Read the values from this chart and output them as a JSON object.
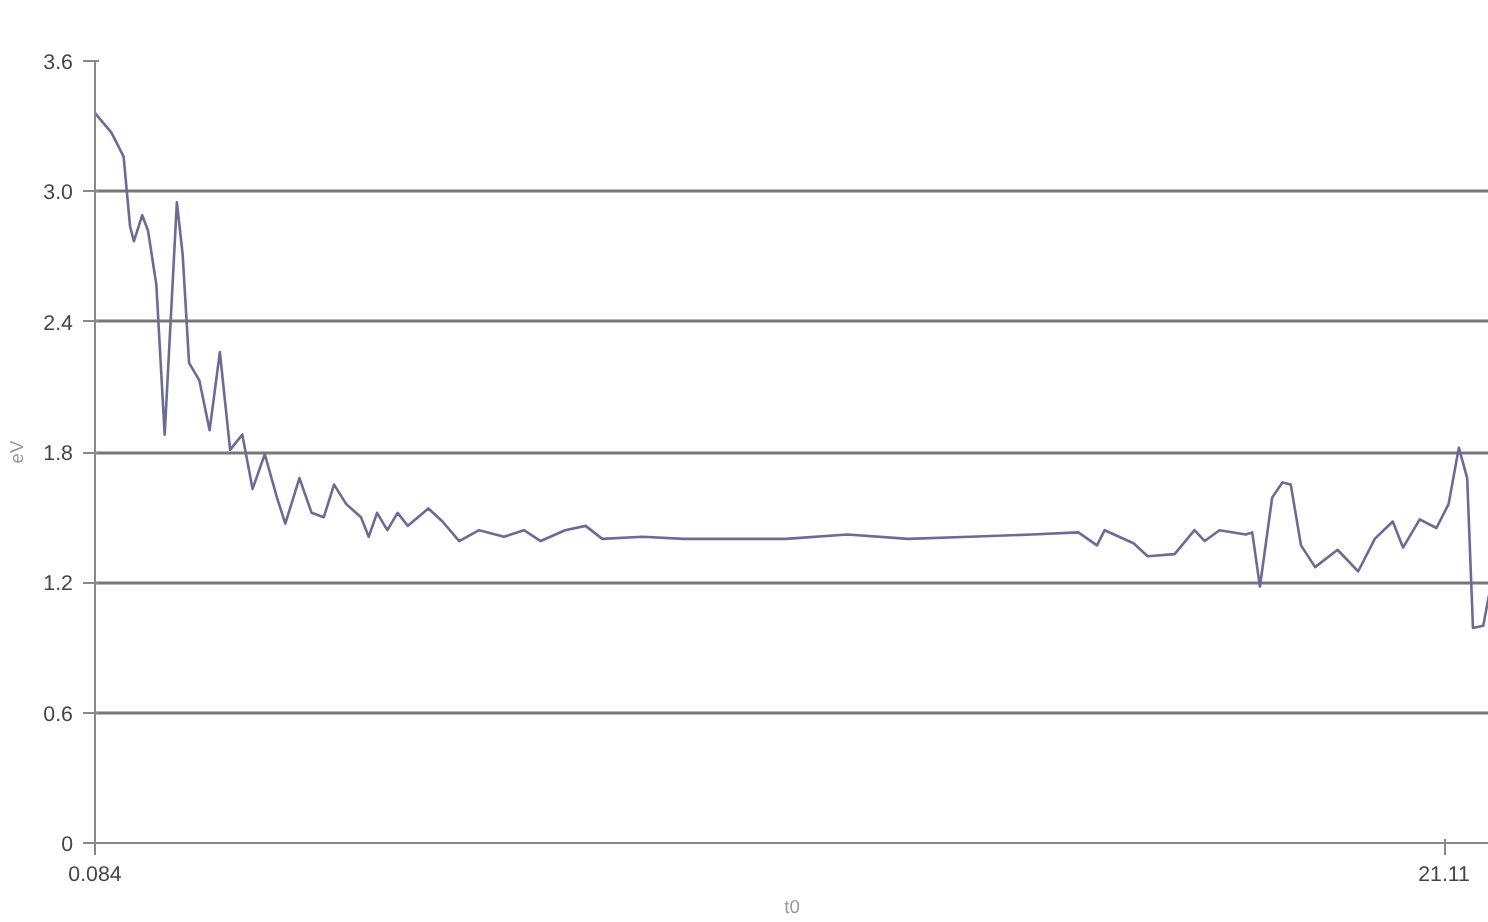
{
  "chart_data": {
    "type": "line",
    "xlabel": "t0",
    "ylabel": "eV",
    "x": [
      0.084,
      0.34,
      0.53,
      0.63,
      0.69,
      0.82,
      0.91,
      1.04,
      1.17,
      1.36,
      1.45,
      1.55,
      1.71,
      1.87,
      2.03,
      2.19,
      2.38,
      2.54,
      2.73,
      2.92,
      3.05,
      3.27,
      3.46,
      3.65,
      3.81,
      4.0,
      4.23,
      4.35,
      4.48,
      4.64,
      4.8,
      4.96,
      5.28,
      5.5,
      5.76,
      6.07,
      6.46,
      6.77,
      7.03,
      7.41,
      7.73,
      7.99,
      8.62,
      9.26,
      9.9,
      10.85,
      11.81,
      12.76,
      13.72,
      14.68,
      15.41,
      15.7,
      15.82,
      16.27,
      16.49,
      16.91,
      17.22,
      17.38,
      17.61,
      18.02,
      18.12,
      18.24,
      18.43,
      18.59,
      18.72,
      18.88,
      19.1,
      19.45,
      19.77,
      20.03,
      20.31,
      20.47,
      20.73,
      20.99,
      21.18,
      21.34,
      21.47,
      21.56,
      21.72,
      21.81
    ],
    "series": [
      {
        "color": "#6b6b9a",
        "values": [
          3.36,
          3.27,
          3.16,
          2.84,
          2.77,
          2.89,
          2.82,
          2.57,
          1.88,
          2.95,
          2.71,
          2.21,
          2.13,
          1.9,
          2.26,
          1.81,
          1.88,
          1.63,
          1.79,
          1.59,
          1.47,
          1.68,
          1.52,
          1.5,
          1.65,
          1.56,
          1.5,
          1.41,
          1.52,
          1.44,
          1.52,
          1.46,
          1.54,
          1.48,
          1.39,
          1.44,
          1.41,
          1.44,
          1.39,
          1.44,
          1.46,
          1.4,
          1.41,
          1.4,
          1.4,
          1.4,
          1.42,
          1.4,
          1.41,
          1.42,
          1.43,
          1.37,
          1.44,
          1.38,
          1.32,
          1.33,
          1.44,
          1.39,
          1.44,
          1.42,
          1.43,
          1.18,
          1.59,
          1.66,
          1.65,
          1.37,
          1.27,
          1.35,
          1.25,
          1.4,
          1.48,
          1.36,
          1.49,
          1.45,
          1.56,
          1.82,
          1.68,
          0.99,
          1.0,
          1.14
        ]
      }
    ],
    "xlim": [
      0.084,
      21.81
    ],
    "xticks": [
      0.084,
      21.11
    ],
    "ylim": [
      0,
      3.6
    ],
    "yticks": [
      0,
      0.6,
      1.2,
      1.8,
      2.4,
      {
        "value": 3,
        "label": "3.0"
      },
      3.6
    ],
    "grid": "y",
    "marker": "none",
    "line_style": "solid"
  }
}
